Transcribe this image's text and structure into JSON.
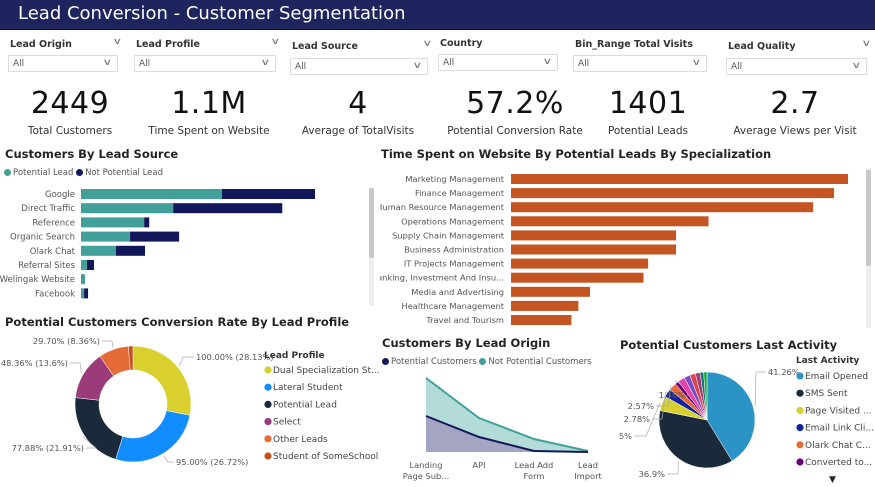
{
  "header": {
    "title": "Lead Conversion - Customer Segmentation",
    "background": "#1e245e"
  },
  "filters": [
    {
      "label": "Lead Origin",
      "value": "All"
    },
    {
      "label": "Lead Profile",
      "value": "All"
    },
    {
      "label": "Lead Source",
      "value": "All"
    },
    {
      "label": "Country",
      "value": "All"
    },
    {
      "label": "Bin_Range Total Visits",
      "value": "All"
    },
    {
      "label": "Lead Quality",
      "value": "All"
    }
  ],
  "kpis": [
    {
      "value": "2449",
      "label": "Total Customers"
    },
    {
      "value": "1.1M",
      "label": "Time Spent on Website"
    },
    {
      "value": "4",
      "label": "Average of TotalVisits"
    },
    {
      "value": "57.2%",
      "label": "Potential Conversion Rate"
    },
    {
      "value": "1401",
      "label": "Potential Leads"
    },
    {
      "value": "2.7",
      "label": "Average Views per Visit"
    }
  ],
  "chart_data": [
    {
      "id": "lead_source",
      "type": "bar",
      "orientation": "horizontal",
      "stacked": true,
      "title": "Customers By Lead Source",
      "categories": [
        "Google",
        "Direct Traffic",
        "Reference",
        "Organic Search",
        "Olark Chat",
        "Referral Sites",
        "Welingak Website",
        "Facebook"
      ],
      "series": [
        {
          "name": "Potential Lead",
          "color": "#41a09a",
          "values": [
            500,
            327,
            224,
            174,
            124,
            21,
            14,
            11
          ]
        },
        {
          "name": "Not Potential Lead",
          "color": "#12165a",
          "values": [
            330,
            387,
            18,
            174,
            103,
            25,
            0,
            14
          ]
        }
      ],
      "legend": "top-left"
    },
    {
      "id": "specialization",
      "type": "bar",
      "orientation": "horizontal",
      "title": "Time Spent on Website By Potential Leads By Specialization",
      "categories": [
        "Marketing Management",
        "Finance Management",
        "Human Resource Management",
        "Operations Management",
        "Supply Chain Management",
        "Business Administration",
        "IT Projects Management",
        "Banking, Investment And Insu...",
        "Media and Advertising",
        "Healthcare Management",
        "Travel and Tourism"
      ],
      "series": [
        {
          "color": "#c55423",
          "values": [
            145,
            139,
            130,
            85,
            71,
            71,
            59,
            57,
            34,
            29,
            26
          ]
        }
      ]
    },
    {
      "id": "lead_profile",
      "type": "pie",
      "donut": true,
      "title": "Potential Customers Conversion Rate By Lead Profile",
      "legend_title": "Lead Profile",
      "slices": [
        {
          "name": "Dual Specialization St...",
          "share": 28.13,
          "label": "100.00% (28.13%)",
          "color": "#d9d02f"
        },
        {
          "name": "Lateral Student",
          "share": 26.72,
          "label": "95.00% (26.72%)",
          "color": "#118dff"
        },
        {
          "name": "Potential Lead",
          "share": 21.91,
          "label": "77.88% (21.91%)",
          "color": "#1b2a3a"
        },
        {
          "name": "Select",
          "share": 13.6,
          "label": "48.36% (13.6%)",
          "color": "#9b3b7a"
        },
        {
          "name": "Other Leads",
          "share": 8.36,
          "label": "29.70% (8.36%)",
          "color": "#e66c37"
        },
        {
          "name": "Student of SomeSchool",
          "share": 1.28,
          "label": "",
          "color": "#c4501e"
        }
      ]
    },
    {
      "id": "lead_origin",
      "type": "area",
      "title": "Customers By Lead Origin",
      "categories": [
        "Landing Page Sub...",
        "API",
        "Lead Add Form",
        "Lead Import"
      ],
      "series": [
        {
          "name": "Potential Customers",
          "color": "#12165a",
          "fill": "#a3a5c3",
          "values": [
            720,
            300,
            20,
            0
          ]
        },
        {
          "name": "Not Potential Customers",
          "color": "#41a09a",
          "fill": "#b3dbd8",
          "values": [
            1480,
            680,
            260,
            20
          ]
        }
      ],
      "legend": "top-left"
    },
    {
      "id": "last_activity",
      "type": "pie",
      "title": "Potential Customers Last Activity",
      "legend_title": "Last Activity",
      "slices": [
        {
          "name": "Email Opened",
          "share": 41.26,
          "label": "41.26%",
          "color": "#2c93c6"
        },
        {
          "name": "SMS Sent",
          "share": 36.9,
          "label": "36.9%",
          "color": "#1b2a3a"
        },
        {
          "name": "Page Visited ...",
          "share": 5,
          "label": "5%",
          "color": "#d9d02f"
        },
        {
          "name": "Email Link Cli...",
          "share": 2.78,
          "label": "2.78%",
          "color": "#12239e"
        },
        {
          "name": "Olark Chat C...",
          "share": 2.57,
          "label": "2.57%",
          "color": "#e66c37"
        },
        {
          "name": "Converted to...",
          "share": 1.36,
          "label": "1.36%",
          "color": "#6b007b"
        },
        {
          "share": 2.3,
          "color": "#e044a7"
        },
        {
          "share": 2.0,
          "color": "#744ec2"
        },
        {
          "share": 1.9,
          "color": "#d64550"
        },
        {
          "share": 1.6,
          "color": "#a43b76"
        },
        {
          "share": 1.2,
          "color": "#197278"
        },
        {
          "share": 1.13,
          "color": "#1aab40"
        }
      ]
    }
  ]
}
